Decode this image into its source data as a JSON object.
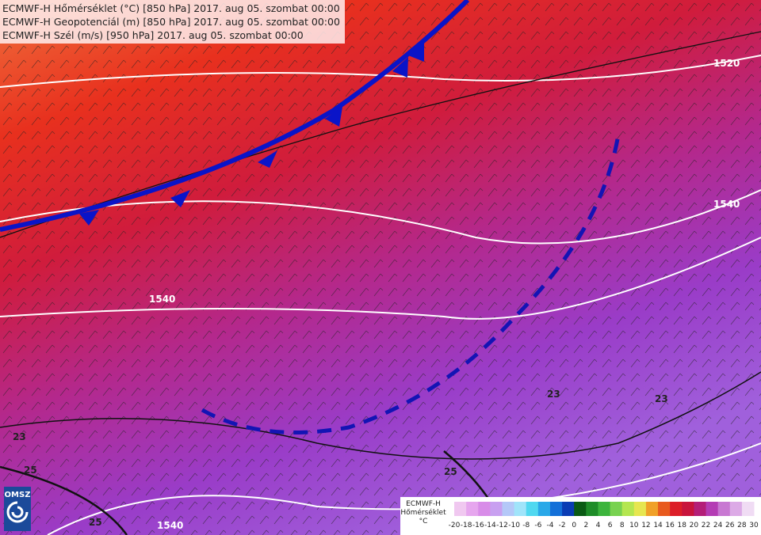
{
  "header": {
    "lines": [
      "ECMWF-H Hőmérséklet (°C) [850 hPa] 2017. aug 05. szombat 00:00",
      "ECMWF-H Geopotenciál (m) [850 hPa] 2017. aug 05. szombat 00:00",
      "ECMWF-H Szél (m/s) [950 hPa] 2017. aug 05. szombat 00:00"
    ]
  },
  "contour_labels": [
    "1520",
    "1540",
    "1540",
    "1540",
    "23",
    "23",
    "23",
    "25",
    "25",
    "25"
  ],
  "logo": "OMSZ",
  "legend": {
    "title": [
      "ECMWF-H",
      "Hőmérséklet",
      "°C"
    ],
    "ticks": [
      -20,
      -18,
      -16,
      -14,
      -12,
      -10,
      -8,
      -6,
      -4,
      -2,
      0,
      2,
      4,
      6,
      8,
      10,
      12,
      14,
      16,
      18,
      20,
      22,
      24,
      26,
      28,
      30
    ],
    "colors": [
      "#f0c8f0",
      "#e6a6ee",
      "#d88ce8",
      "#c8a0f0",
      "#b4c8f8",
      "#a0e4fa",
      "#50d8f0",
      "#2aa8e8",
      "#1470d8",
      "#0a3cb4",
      "#0a5a14",
      "#1e8c28",
      "#3cb43c",
      "#78d250",
      "#b4e650",
      "#e6e650",
      "#f0a028",
      "#e85a1e",
      "#dc1e28",
      "#c8143c",
      "#b41e78",
      "#b43cb4",
      "#c878d2",
      "#dcaae6",
      "#f0dcf4"
    ]
  }
}
